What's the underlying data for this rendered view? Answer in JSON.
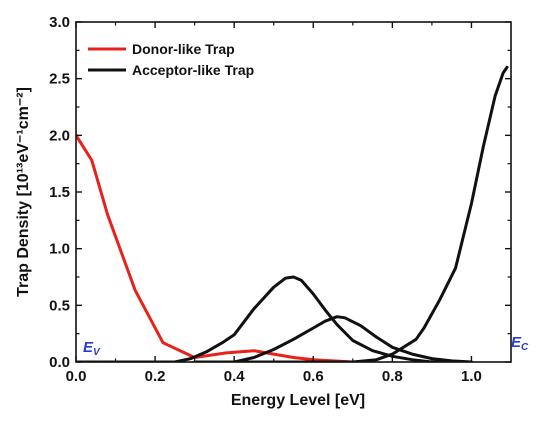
{
  "chart_data": {
    "type": "line",
    "xlabel": "Energy Level [eV]",
    "ylabel": "Trap Density [10¹³eV⁻¹cm⁻²]",
    "xlim": [
      0.0,
      1.1
    ],
    "ylim": [
      0.0,
      3.0
    ],
    "x_ticks": [
      "0.0",
      "0.2",
      "0.4",
      "0.6",
      "0.8",
      "1.0"
    ],
    "x_tick_values": [
      0.0,
      0.2,
      0.4,
      0.6,
      0.8,
      1.0
    ],
    "y_ticks": [
      "0.0",
      "0.5",
      "1.0",
      "1.5",
      "2.0",
      "2.5",
      "3.0"
    ],
    "y_tick_values": [
      0.0,
      0.5,
      1.0,
      1.5,
      2.0,
      2.5,
      3.0
    ],
    "legend_position": "top-left",
    "grid": false,
    "legend": [
      {
        "label": "Donor-like Trap",
        "color": "#e8211b"
      },
      {
        "label": "Acceptor-like Trap",
        "color": "#111111"
      }
    ],
    "band_labels": [
      {
        "main": "E",
        "sub": "V",
        "color": "#2a3bd0"
      },
      {
        "main": "E",
        "sub": "C",
        "color": "#2a3bd0"
      }
    ],
    "series": [
      {
        "color": "#e8211b",
        "x": [
          0.0,
          0.04,
          0.08,
          0.15,
          0.22,
          0.3,
          0.38,
          0.45,
          0.5,
          0.55,
          0.6,
          0.65,
          0.7
        ],
        "y": [
          2.0,
          1.78,
          1.3,
          0.63,
          0.17,
          0.04,
          0.08,
          0.1,
          0.07,
          0.04,
          0.02,
          0.01,
          0.0
        ]
      },
      {
        "color": "#111111",
        "x": [
          0.0,
          0.1,
          0.2,
          0.25,
          0.29,
          0.33,
          0.37,
          0.4,
          0.45,
          0.5,
          0.53,
          0.55,
          0.57,
          0.6,
          0.63,
          0.66,
          0.7,
          0.75,
          0.8,
          0.85,
          0.9,
          0.95
        ],
        "y": [
          0.0,
          0.0,
          0.0,
          0.0,
          0.03,
          0.09,
          0.17,
          0.24,
          0.47,
          0.66,
          0.74,
          0.75,
          0.72,
          0.6,
          0.46,
          0.33,
          0.19,
          0.1,
          0.05,
          0.02,
          0.0,
          0.0
        ]
      },
      {
        "color": "#111111",
        "x": [
          0.3,
          0.35,
          0.4,
          0.45,
          0.5,
          0.55,
          0.6,
          0.63,
          0.66,
          0.68,
          0.72,
          0.76,
          0.8,
          0.85,
          0.9,
          0.95,
          1.0
        ],
        "y": [
          0.0,
          0.0,
          0.0,
          0.04,
          0.11,
          0.2,
          0.3,
          0.36,
          0.4,
          0.39,
          0.32,
          0.22,
          0.13,
          0.07,
          0.03,
          0.01,
          0.0
        ]
      },
      {
        "color": "#111111",
        "x": [
          0.4,
          0.6,
          0.7,
          0.76,
          0.8,
          0.86,
          0.88,
          0.92,
          0.96,
          1.0,
          1.03,
          1.06,
          1.08,
          1.09
        ],
        "y": [
          0.0,
          0.0,
          0.0,
          0.02,
          0.07,
          0.2,
          0.3,
          0.55,
          0.83,
          1.4,
          1.9,
          2.35,
          2.55,
          2.6
        ]
      }
    ]
  }
}
